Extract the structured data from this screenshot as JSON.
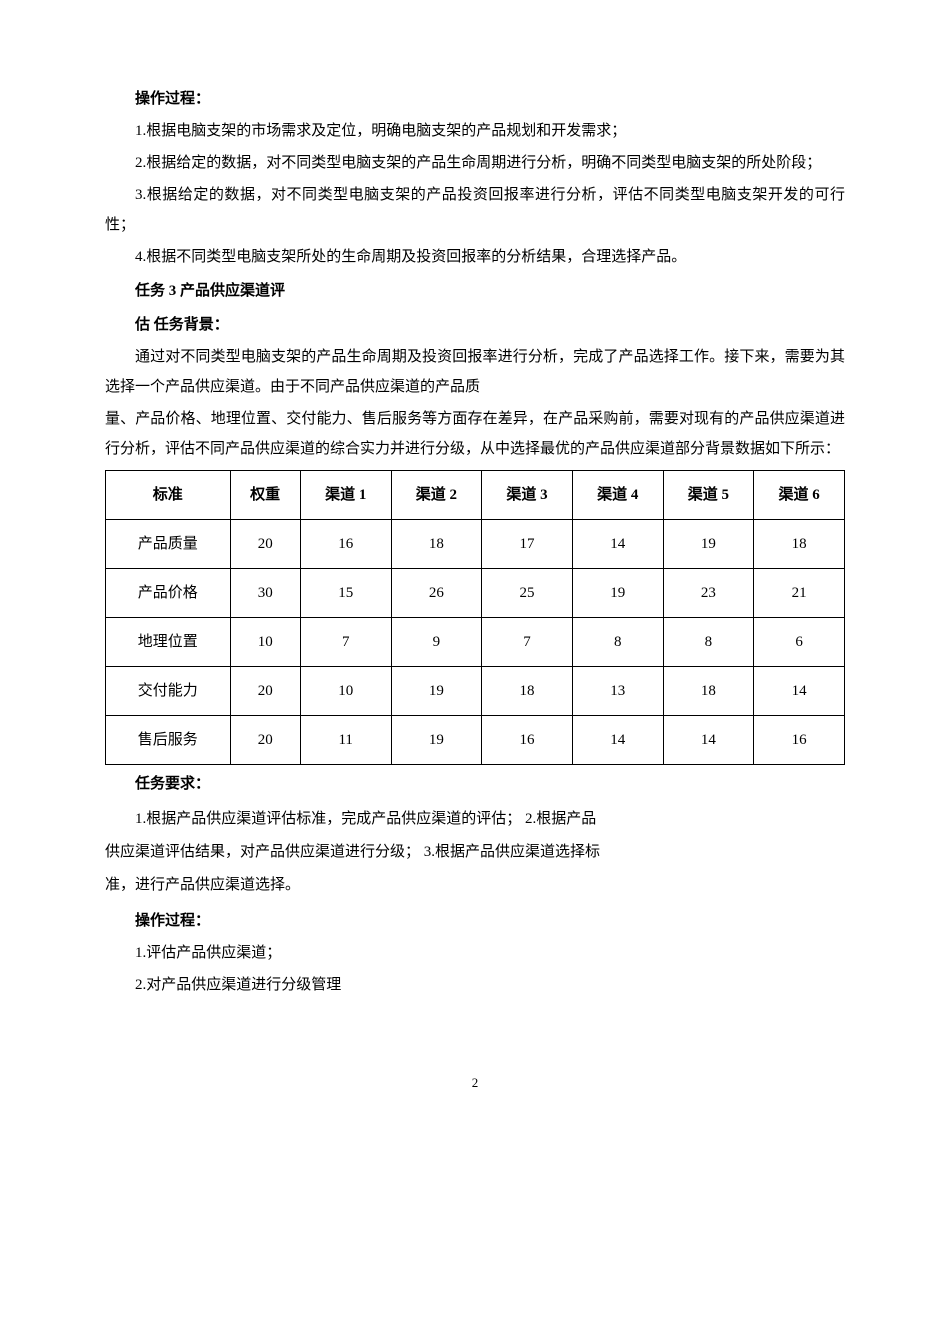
{
  "ops_heading": "操作过程：",
  "ops1": "1.根据电脑支架的市场需求及定位，明确电脑支架的产品规划和开发需求；",
  "ops2": "2.根据给定的数据，对不同类型电脑支架的产品生命周期进行分析，明确不同类型电脑支架的所处阶段；",
  "ops3": "3.根据给定的数据，对不同类型电脑支架的产品投资回报率进行分析，评估不同类型电脑支架开发的可行性；",
  "ops4": "4.根据不同类型电脑支架所处的生命周期及投资回报率的分析结果，合理选择产品。",
  "task3_title": "任务 3  产品供应渠道评",
  "task3_title2": "估 任务背景：",
  "bg1": "通过对不同类型电脑支架的产品生命周期及投资回报率进行分析，完成了产品选择工作。接下来，需要为其选择一个产品供应渠道。由于不同产品供应渠道的产品质",
  "bg2": "量、产品价格、地理位置、交付能力、售后服务等方面存在差异，在产品采购前，需要对现有的产品供应渠道进行分析，评估不同产品供应渠道的综合实力并进行分级，从中选择最优的产品供应渠道部分背景数据如下所示：",
  "table": {
    "columns": [
      "标准",
      "权重",
      "渠道 1",
      "渠道 2",
      "渠道 3",
      "渠道 4",
      "渠道 5",
      "渠道 6"
    ],
    "rows": [
      [
        "产品质量",
        "20",
        "16",
        "18",
        "17",
        "14",
        "19",
        "18"
      ],
      [
        "产品价格",
        "30",
        "15",
        "26",
        "25",
        "19",
        "23",
        "21"
      ],
      [
        "地理位置",
        "10",
        "7",
        "9",
        "7",
        "8",
        "8",
        "6"
      ],
      [
        "交付能力",
        "20",
        "10",
        "19",
        "18",
        "13",
        "18",
        "14"
      ],
      [
        "售后服务",
        "20",
        "11",
        "19",
        "16",
        "14",
        "14",
        "16"
      ]
    ],
    "border_color": "#000000",
    "header_bold": true,
    "cell_align": "center",
    "font_size": 15
  },
  "req_heading": "任务要求：",
  "req_text": "1.根据产品供应渠道评估标准，完成产品供应渠道的评估；  2.根据产品供应渠道评估结果，对产品供应渠道进行分级；  3.根据产品供应渠道选择标准，进行产品供应渠道选择。",
  "ops2_heading": "操作过程：",
  "ops2_1": "1.评估产品供应渠道；",
  "ops2_2": "2.对产品供应渠道进行分级管理",
  "page_number": "2",
  "colors": {
    "text": "#000000",
    "background": "#ffffff",
    "table_border": "#000000"
  }
}
